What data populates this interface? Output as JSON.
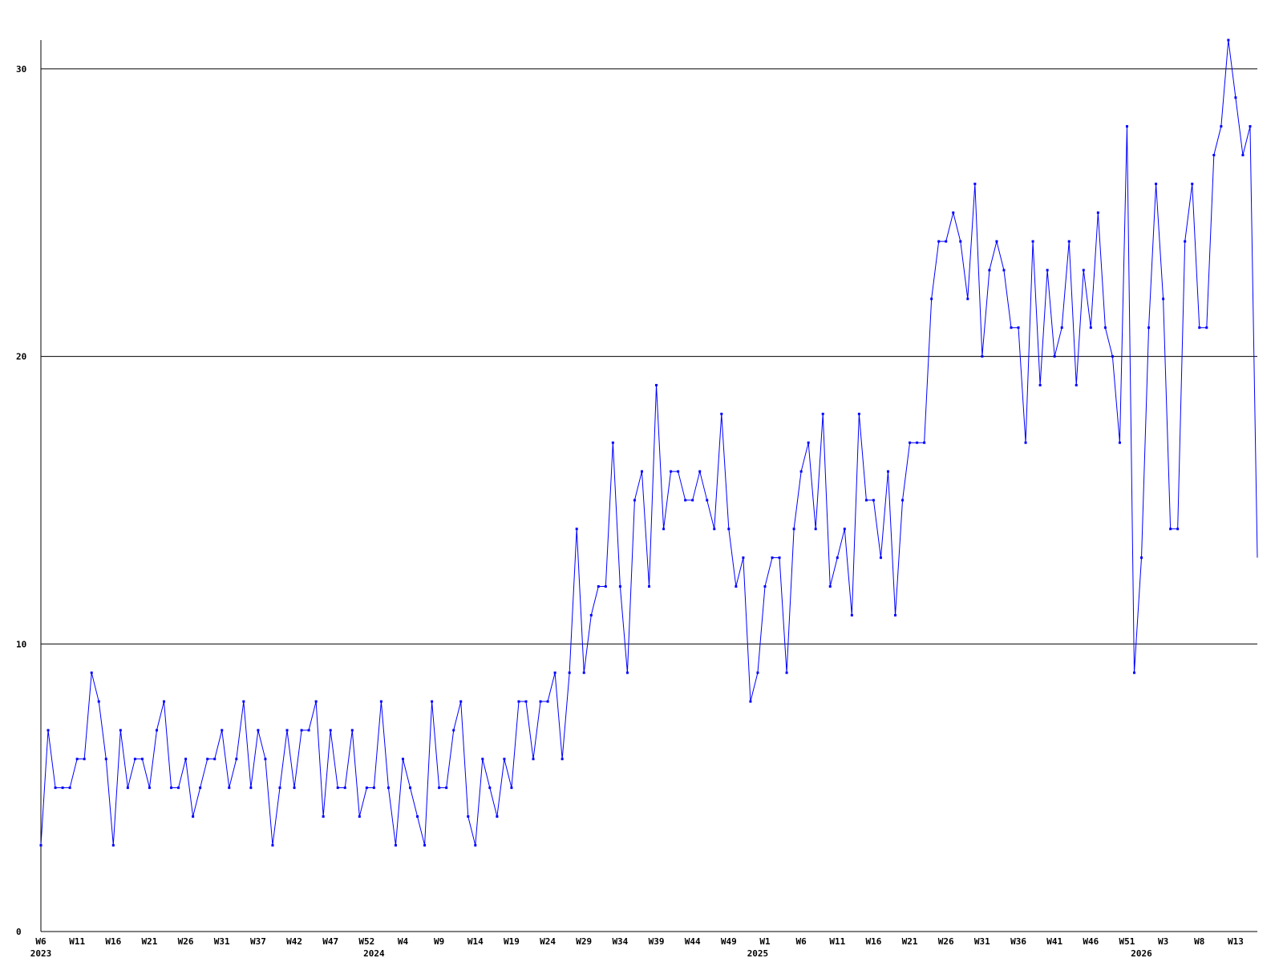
{
  "chart_data": {
    "type": "line",
    "categories": [
      "W6",
      null,
      null,
      null,
      null,
      "W11",
      null,
      null,
      null,
      null,
      "W16",
      null,
      null,
      null,
      null,
      "W21",
      null,
      null,
      null,
      null,
      "W26",
      null,
      null,
      null,
      null,
      "W31",
      null,
      null,
      null,
      null,
      "W37",
      null,
      null,
      null,
      null,
      "W42",
      null,
      null,
      null,
      null,
      "W47",
      null,
      null,
      null,
      null,
      "W52",
      null,
      null,
      null,
      null,
      "W4",
      null,
      null,
      null,
      null,
      "W9",
      null,
      null,
      null,
      null,
      "W14",
      null,
      null,
      null,
      null,
      "W19",
      null,
      null,
      null,
      null,
      "W24",
      null,
      null,
      null,
      null,
      "W29",
      null,
      null,
      null,
      null,
      "W34",
      null,
      null,
      null,
      null,
      "W39",
      null,
      null,
      null,
      null,
      "W44",
      null,
      null,
      null,
      null,
      "W49",
      null,
      null,
      null,
      null,
      "W1",
      null,
      null,
      null,
      null,
      "W6",
      null,
      null,
      null,
      null,
      "W11",
      null,
      null,
      null,
      null,
      "W16",
      null,
      null,
      null,
      null,
      "W21",
      null,
      null,
      null,
      null,
      "W26",
      null,
      null,
      null,
      null,
      "W31",
      null,
      null,
      null,
      null,
      "W36",
      null,
      null,
      null,
      null,
      "W41",
      null,
      null,
      null,
      null,
      "W46",
      null,
      null,
      null,
      null,
      "W51",
      null,
      null,
      null,
      null,
      "W3",
      null,
      null,
      null,
      null,
      "W8",
      null,
      null,
      null,
      null,
      "W13",
      null,
      null,
      null
    ],
    "year_labels": [
      {
        "label": "2023",
        "category": 0
      },
      {
        "label": "2024",
        "category": 46
      },
      {
        "label": "2025",
        "category": 99
      },
      {
        "label": "2026",
        "category": 152
      }
    ],
    "series": [
      {
        "color": "#0000ff",
        "values": [
          3,
          7,
          5,
          5,
          5,
          6,
          6,
          9,
          8,
          6,
          3,
          7,
          5,
          6,
          6,
          5,
          7,
          8,
          5,
          5,
          6,
          4,
          5,
          6,
          6,
          7,
          5,
          6,
          8,
          5,
          7,
          6,
          3,
          5,
          7,
          5,
          7,
          7,
          8,
          4,
          7,
          5,
          5,
          7,
          4,
          5,
          5,
          8,
          5,
          3,
          6,
          5,
          4,
          3,
          8,
          5,
          5,
          7,
          8,
          4,
          3,
          6,
          5,
          4,
          6,
          5,
          8,
          8,
          6,
          8,
          8,
          9,
          6,
          9,
          14,
          9,
          11,
          12,
          12,
          17,
          12,
          9,
          15,
          16,
          12,
          19,
          14,
          16,
          16,
          15,
          15,
          16,
          15,
          14,
          18,
          14,
          12,
          13,
          8,
          9,
          12,
          13,
          13,
          9,
          14,
          16,
          17,
          14,
          18,
          12,
          13,
          14,
          11,
          18,
          15,
          15,
          13,
          16,
          11,
          15,
          17,
          17,
          17,
          22,
          24,
          24,
          25,
          24,
          22,
          26,
          20,
          23,
          24,
          23,
          21,
          21,
          17,
          24,
          19,
          23,
          20,
          21,
          24,
          19,
          23,
          21,
          25,
          21,
          20,
          17,
          28,
          9,
          13,
          21,
          26,
          22,
          14,
          14,
          24,
          26,
          21,
          21,
          27,
          28,
          31,
          29,
          27,
          28,
          13
        ]
      }
    ],
    "ylim": [
      0,
      31
    ],
    "yticks": [
      0,
      10,
      20,
      30
    ],
    "grid": true
  }
}
